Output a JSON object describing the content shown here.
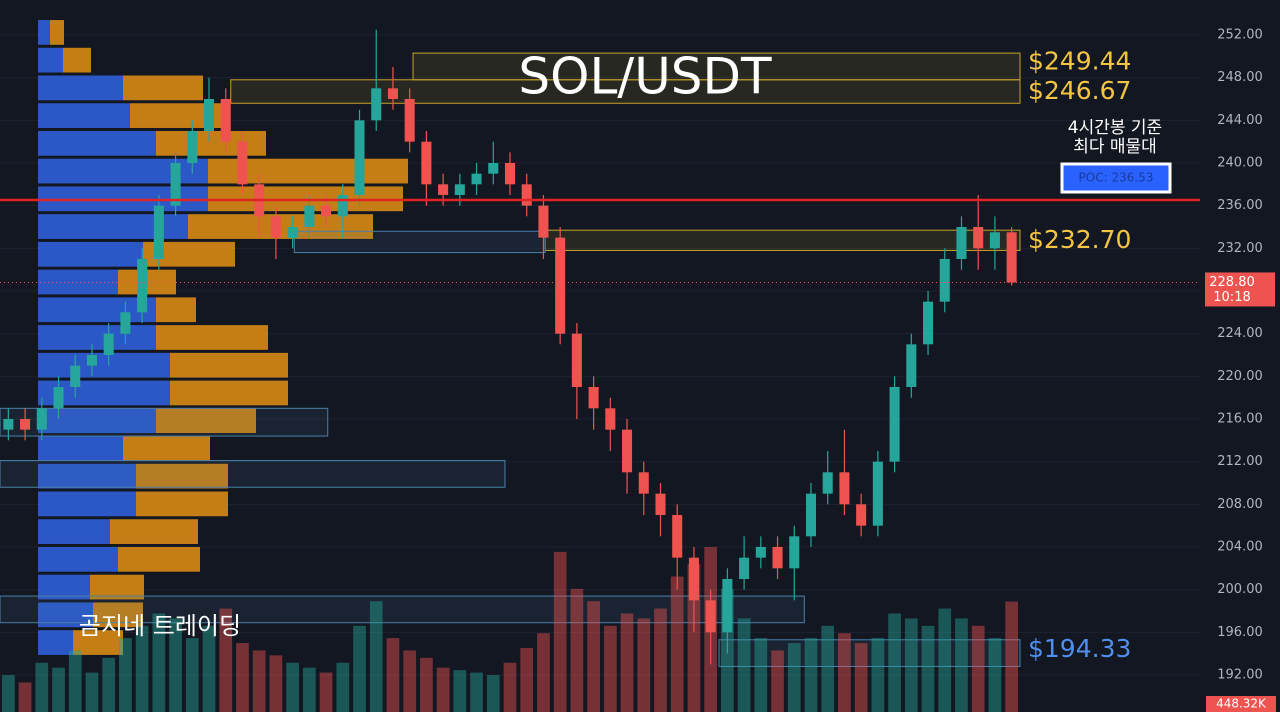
{
  "chart_data": {
    "type": "candlestick",
    "title": "SOL/USDT",
    "watermark": "곰지네 트레이딩",
    "annotation": [
      "4시간봉 기준",
      "최다 매물대"
    ],
    "ylim": [
      188.53,
      255.28
    ],
    "yticks": [
      {
        "value": 192,
        "label": "192.00"
      },
      {
        "value": 196,
        "label": "196.00"
      },
      {
        "value": 200,
        "label": "200.00"
      },
      {
        "value": 204,
        "label": "204.00"
      },
      {
        "value": 208,
        "label": "208.00"
      },
      {
        "value": 212,
        "label": "212.00"
      },
      {
        "value": 216,
        "label": "216.00"
      },
      {
        "value": 220,
        "label": "220.00"
      },
      {
        "value": 224,
        "label": "224.00"
      },
      {
        "value": 228,
        "label": "228.00"
      },
      {
        "value": 232,
        "label": "232.00"
      },
      {
        "value": 236,
        "label": "236.00"
      },
      {
        "value": 240,
        "label": "240.00"
      },
      {
        "value": 244,
        "label": "244.00"
      },
      {
        "value": 248,
        "label": "248.00"
      },
      {
        "value": 252,
        "label": "252.00"
      }
    ],
    "grid": true,
    "up_color": "#26a69a",
    "down_color": "#ef5350",
    "open": [
      215,
      216,
      215,
      217,
      219,
      221,
      222,
      224,
      226,
      231,
      236,
      240,
      243,
      246,
      242,
      238,
      235,
      233,
      234,
      236,
      235,
      237,
      244,
      247,
      246,
      242,
      238,
      237,
      238,
      239,
      240,
      238,
      236,
      233,
      224,
      219,
      217,
      215,
      211,
      209,
      207,
      203,
      199,
      196,
      201,
      203,
      204,
      202,
      205,
      209,
      211,
      208,
      206,
      212,
      219,
      223,
      227,
      231,
      234,
      232,
      233.5
    ],
    "high": [
      217,
      217,
      218,
      220,
      222,
      223,
      225,
      227,
      232,
      237,
      241,
      244,
      248,
      247,
      243,
      239,
      236,
      235,
      237,
      237,
      238,
      245,
      252.5,
      249,
      247,
      243,
      239,
      239,
      240,
      242,
      241,
      239,
      237,
      234,
      225,
      220,
      218,
      216,
      212,
      210,
      208,
      204,
      200,
      202,
      205,
      205,
      205,
      206,
      210,
      213,
      215,
      209,
      213,
      220,
      224,
      228,
      232,
      235,
      237,
      235,
      234
    ],
    "low": [
      214,
      214,
      214,
      216,
      218,
      220,
      221,
      223,
      225,
      230,
      235,
      239,
      242,
      241,
      237,
      233,
      231,
      232,
      233,
      234,
      233,
      236,
      243,
      245,
      241,
      236,
      236,
      236,
      237,
      238,
      237,
      235,
      231,
      223,
      216,
      215,
      213,
      209,
      207,
      205,
      200,
      196,
      193,
      194,
      200,
      202,
      201,
      199,
      204,
      208,
      207,
      205,
      205,
      211,
      218,
      222,
      226,
      230,
      230,
      230,
      228.5
    ],
    "close": [
      216,
      215,
      217,
      219,
      221,
      222,
      224,
      226,
      231,
      236,
      240,
      243,
      246,
      242,
      238,
      235,
      233,
      234,
      236,
      235,
      237,
      244,
      247,
      246,
      242,
      238,
      237,
      238,
      239,
      240,
      238,
      236,
      233,
      224,
      219,
      217,
      215,
      211,
      209,
      207,
      203,
      199,
      196,
      201,
      203,
      204,
      202,
      205,
      209,
      211,
      208,
      206,
      212,
      219,
      223,
      227,
      231,
      234,
      232,
      233.5,
      228.8
    ],
    "volume": {
      "values": [
        150,
        120,
        200,
        180,
        250,
        160,
        220,
        300,
        350,
        400,
        380,
        300,
        350,
        420,
        280,
        250,
        230,
        200,
        180,
        160,
        200,
        350,
        450,
        300,
        250,
        220,
        180,
        170,
        160,
        150,
        200,
        260,
        320,
        650,
        500,
        450,
        350,
        400,
        380,
        420,
        550,
        600,
        670,
        500,
        380,
        300,
        250,
        280,
        300,
        350,
        320,
        280,
        300,
        400,
        380,
        350,
        420,
        380,
        350,
        300,
        448.32
      ],
      "last_label": "448.32K"
    },
    "volume_profile": {
      "levels": [
        253.4,
        250.8,
        248.2,
        245.6,
        243.0,
        240.4,
        237.8,
        235.2,
        232.6,
        230.0,
        227.4,
        224.8,
        222.2,
        219.6,
        217.0,
        214.4,
        211.8,
        209.2,
        206.6,
        204.0,
        201.4,
        198.8,
        196.2
      ],
      "buy": [
        12,
        25,
        85,
        92,
        118,
        170,
        170,
        150,
        105,
        80,
        118,
        118,
        132,
        132,
        118,
        85,
        98,
        98,
        72,
        80,
        52,
        55,
        35
      ],
      "sell": [
        14,
        28,
        80,
        93,
        110,
        200,
        195,
        185,
        92,
        58,
        40,
        112,
        118,
        118,
        100,
        87,
        92,
        92,
        88,
        82,
        54,
        50,
        50
      ],
      "buy_color": "#2f5fd8",
      "sell_color": "#d88a14"
    },
    "zones": [
      {
        "low": 247.8,
        "high": 250.3,
        "start": 24.7,
        "end": 61,
        "color": "#c9a227",
        "value": 249.44,
        "label": "$249.44"
      },
      {
        "low": 245.6,
        "high": 247.8,
        "start": 13.8,
        "end": 61,
        "color": "#c9a227",
        "value": 246.67,
        "label": "$246.67"
      },
      {
        "low": 231.8,
        "high": 233.7,
        "start": 32.6,
        "end": 61,
        "color": "#c9a227",
        "value": 232.7,
        "label": "$232.70"
      },
      {
        "low": 231.6,
        "high": 233.6,
        "start": 17.6,
        "end": 32.6,
        "color": "#4a7fa8"
      },
      {
        "low": 214.4,
        "high": 217.0,
        "start": 0,
        "end": 19.6,
        "color": "#4a7fa8"
      },
      {
        "low": 209.6,
        "high": 212.1,
        "start": 0,
        "end": 30.2,
        "color": "#4a7fa8"
      },
      {
        "low": 196.9,
        "high": 199.4,
        "start": 0,
        "end": 48.1,
        "color": "#4a7fa8"
      },
      {
        "low": 192.8,
        "high": 195.3,
        "start": 43,
        "end": 61,
        "color": "#4a7fa8",
        "value": 194.33,
        "label": "$194.33"
      }
    ],
    "poc": {
      "value": 236.53,
      "label": "POC: 236.53",
      "color": "#e02424"
    },
    "last_price": {
      "value": 228.8,
      "label": "228.80",
      "time": "10:18",
      "color": "#ef5350"
    }
  }
}
